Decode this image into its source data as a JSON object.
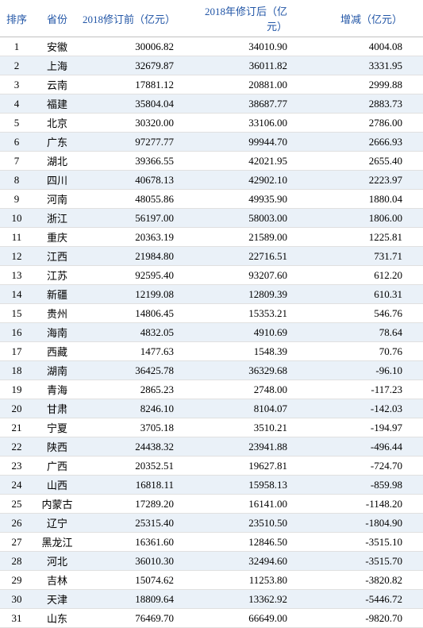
{
  "table": {
    "columns": [
      "排序",
      "省份",
      "2018修订前（亿元）",
      "2018年修订后（亿元）",
      "增减（亿元）"
    ],
    "rows": [
      [
        "1",
        "安徽",
        "30006.82",
        "34010.90",
        "4004.08"
      ],
      [
        "2",
        "上海",
        "32679.87",
        "36011.82",
        "3331.95"
      ],
      [
        "3",
        "云南",
        "17881.12",
        "20881.00",
        "2999.88"
      ],
      [
        "4",
        "福建",
        "35804.04",
        "38687.77",
        "2883.73"
      ],
      [
        "5",
        "北京",
        "30320.00",
        "33106.00",
        "2786.00"
      ],
      [
        "6",
        "广东",
        "97277.77",
        "99944.70",
        "2666.93"
      ],
      [
        "7",
        "湖北",
        "39366.55",
        "42021.95",
        "2655.40"
      ],
      [
        "8",
        "四川",
        "40678.13",
        "42902.10",
        "2223.97"
      ],
      [
        "9",
        "河南",
        "48055.86",
        "49935.90",
        "1880.04"
      ],
      [
        "10",
        "浙江",
        "56197.00",
        "58003.00",
        "1806.00"
      ],
      [
        "11",
        "重庆",
        "20363.19",
        "21589.00",
        "1225.81"
      ],
      [
        "12",
        "江西",
        "21984.80",
        "22716.51",
        "731.71"
      ],
      [
        "13",
        "江苏",
        "92595.40",
        "93207.60",
        "612.20"
      ],
      [
        "14",
        "新疆",
        "12199.08",
        "12809.39",
        "610.31"
      ],
      [
        "15",
        "贵州",
        "14806.45",
        "15353.21",
        "546.76"
      ],
      [
        "16",
        "海南",
        "4832.05",
        "4910.69",
        "78.64"
      ],
      [
        "17",
        "西藏",
        "1477.63",
        "1548.39",
        "70.76"
      ],
      [
        "18",
        "湖南",
        "36425.78",
        "36329.68",
        "-96.10"
      ],
      [
        "19",
        "青海",
        "2865.23",
        "2748.00",
        "-117.23"
      ],
      [
        "20",
        "甘肃",
        "8246.10",
        "8104.07",
        "-142.03"
      ],
      [
        "21",
        "宁夏",
        "3705.18",
        "3510.21",
        "-194.97"
      ],
      [
        "22",
        "陕西",
        "24438.32",
        "23941.88",
        "-496.44"
      ],
      [
        "23",
        "广西",
        "20352.51",
        "19627.81",
        "-724.70"
      ],
      [
        "24",
        "山西",
        "16818.11",
        "15958.13",
        "-859.98"
      ],
      [
        "25",
        "内蒙古",
        "17289.20",
        "16141.00",
        "-1148.20"
      ],
      [
        "26",
        "辽宁",
        "25315.40",
        "23510.50",
        "-1804.90"
      ],
      [
        "27",
        "黑龙江",
        "16361.60",
        "12846.50",
        "-3515.10"
      ],
      [
        "28",
        "河北",
        "36010.30",
        "32494.60",
        "-3515.70"
      ],
      [
        "29",
        "吉林",
        "15074.62",
        "11253.80",
        "-3820.82"
      ],
      [
        "30",
        "天津",
        "18809.64",
        "13362.92",
        "-5446.72"
      ],
      [
        "31",
        "山东",
        "76469.70",
        "66649.00",
        "-9820.70"
      ]
    ],
    "header_color": "#2155a6",
    "row_even_bg": "#eaf1f8",
    "row_odd_bg": "#ffffff",
    "font_size": 13
  }
}
